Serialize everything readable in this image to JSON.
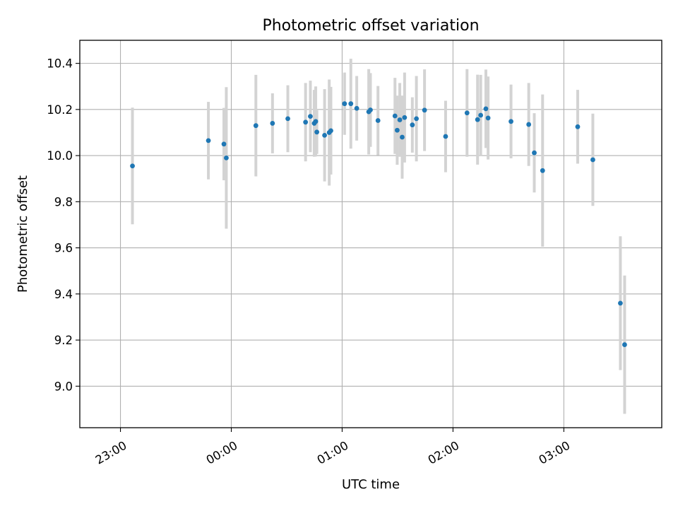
{
  "chart_data": {
    "type": "scatter",
    "title": "Photometric offset variation",
    "xlabel": "UTC time",
    "ylabel": "Photometric offset",
    "grid": true,
    "legend": "none",
    "xlim_minutes_from_midnight": [
      -82,
      233
    ],
    "ylim": [
      8.82,
      10.5
    ],
    "x_ticks": [
      {
        "minutes": -60,
        "label": "23:00"
      },
      {
        "minutes": 0,
        "label": "00:00"
      },
      {
        "minutes": 60,
        "label": "01:00"
      },
      {
        "minutes": 120,
        "label": "02:00"
      },
      {
        "minutes": 180,
        "label": "03:00"
      }
    ],
    "y_ticks": [
      9.0,
      9.2,
      9.4,
      9.6,
      9.8,
      10.0,
      10.2,
      10.4
    ],
    "y_tick_labels": [
      "9.0",
      "9.2",
      "9.4",
      "9.6",
      "9.8",
      "10.0",
      "10.2",
      "10.4"
    ],
    "point_color": "#1f77b4",
    "errorbar_color": "#d3d3d3",
    "series": [
      {
        "name": "offset",
        "points": [
          {
            "t": -53.5,
            "y": 9.955,
            "err": 0.253
          },
          {
            "t": -12.4,
            "y": 10.065,
            "err": 0.168
          },
          {
            "t": -4.0,
            "y": 10.05,
            "err": 0.157
          },
          {
            "t": -2.7,
            "y": 9.99,
            "err": 0.307
          },
          {
            "t": -6.5,
            "y": 10.0,
            "err": 0.0,
            "hidden_point": true
          },
          {
            "t": 13.3,
            "y": 10.13,
            "err": 0.22
          },
          {
            "t": 22.3,
            "y": 10.14,
            "err": 0.13
          },
          {
            "t": 30.6,
            "y": 10.16,
            "err": 0.145
          },
          {
            "t": 40.2,
            "y": 10.145,
            "err": 0.17
          },
          {
            "t": 42.8,
            "y": 10.17,
            "err": 0.155
          },
          {
            "t": 44.9,
            "y": 10.14,
            "err": 0.145
          },
          {
            "t": 45.7,
            "y": 10.148,
            "err": 0.152
          },
          {
            "t": 46.3,
            "y": 10.102,
            "err": 0.095
          },
          {
            "t": 50.5,
            "y": 10.088,
            "err": 0.2
          },
          {
            "t": 53.0,
            "y": 10.1,
            "err": 0.23
          },
          {
            "t": 53.9,
            "y": 10.108,
            "err": 0.19
          },
          {
            "t": 61.3,
            "y": 10.225,
            "err": 0.135
          },
          {
            "t": 64.7,
            "y": 10.225,
            "err": 0.195
          },
          {
            "t": 67.9,
            "y": 10.205,
            "err": 0.14
          },
          {
            "t": 74.4,
            "y": 10.19,
            "err": 0.185
          },
          {
            "t": 75.3,
            "y": 10.198,
            "err": 0.16
          },
          {
            "t": 79.4,
            "y": 10.152,
            "err": 0.15
          },
          {
            "t": 88.6,
            "y": 10.172,
            "err": 0.165
          },
          {
            "t": 89.8,
            "y": 10.11,
            "err": 0.15
          },
          {
            "t": 91.2,
            "y": 10.155,
            "err": 0.16
          },
          {
            "t": 92.5,
            "y": 10.08,
            "err": 0.18
          },
          {
            "t": 93.8,
            "y": 10.165,
            "err": 0.195
          },
          {
            "t": 98.0,
            "y": 10.133,
            "err": 0.12
          },
          {
            "t": 100.2,
            "y": 10.16,
            "err": 0.185
          },
          {
            "t": 104.6,
            "y": 10.197,
            "err": 0.177
          },
          {
            "t": 116.0,
            "y": 10.083,
            "err": 0.155
          },
          {
            "t": 127.6,
            "y": 10.185,
            "err": 0.19
          },
          {
            "t": 133.3,
            "y": 10.156,
            "err": 0.195
          },
          {
            "t": 135.0,
            "y": 10.175,
            "err": 0.175
          },
          {
            "t": 137.8,
            "y": 10.203,
            "err": 0.17
          },
          {
            "t": 139.0,
            "y": 10.163,
            "err": 0.18
          },
          {
            "t": 151.4,
            "y": 10.148,
            "err": 0.16
          },
          {
            "t": 161.0,
            "y": 10.135,
            "err": 0.18
          },
          {
            "t": 164.0,
            "y": 10.012,
            "err": 0.172
          },
          {
            "t": 168.5,
            "y": 9.935,
            "err": 0.33
          },
          {
            "t": 187.5,
            "y": 10.125,
            "err": 0.16
          },
          {
            "t": 195.7,
            "y": 9.982,
            "err": 0.2
          },
          {
            "t": 210.6,
            "y": 9.36,
            "err": 0.29
          },
          {
            "t": 212.9,
            "y": 9.18,
            "err": 0.3
          }
        ]
      }
    ]
  }
}
